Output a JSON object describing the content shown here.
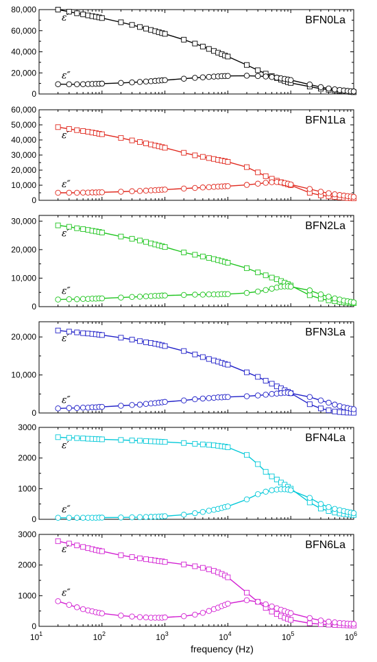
{
  "x_axis": {
    "label": "frequency (Hz)",
    "scale": "log",
    "range": [
      10,
      1000000
    ],
    "tick_values": [
      10,
      100,
      1000,
      10000,
      100000,
      1000000
    ],
    "tick_labels": [
      {
        "base": "10",
        "exp": "1"
      },
      {
        "base": "10",
        "exp": "2"
      },
      {
        "base": "10",
        "exp": "3"
      },
      {
        "base": "10",
        "exp": "4"
      },
      {
        "base": "10",
        "exp": "5"
      },
      {
        "base": "10",
        "exp": "6"
      }
    ]
  },
  "labels": {
    "eps_real": "ε′",
    "eps_imag": "ε″"
  },
  "chart_data": [
    {
      "type": "scatter",
      "title": "BFN0La",
      "color": "#000000",
      "ylim": [
        0,
        80000
      ],
      "yticks": [
        0,
        20000,
        40000,
        60000,
        80000
      ],
      "ytick_labels": [
        "0",
        "20,000",
        "40,000",
        "60,000",
        "80,000"
      ],
      "x": [
        20,
        30,
        40,
        50,
        60,
        70,
        80,
        90,
        100,
        200,
        300,
        400,
        500,
        600,
        700,
        800,
        900,
        1000,
        2000,
        3000,
        4000,
        5000,
        6000,
        7000,
        8000,
        9000,
        10000,
        20000,
        30000,
        40000,
        50000,
        60000,
        70000,
        80000,
        90000,
        100000,
        200000,
        300000,
        400000,
        500000,
        600000,
        700000,
        800000,
        900000,
        1000000
      ],
      "series": [
        {
          "name": "ε′",
          "marker": "square",
          "values": [
            80000,
            78000,
            76500,
            75500,
            74500,
            73800,
            73200,
            72600,
            72000,
            68000,
            65500,
            63500,
            62000,
            60700,
            59600,
            58600,
            57700,
            57000,
            51500,
            47800,
            45000,
            42700,
            40800,
            39200,
            37800,
            36500,
            35500,
            27500,
            22500,
            19300,
            17000,
            15100,
            13500,
            12200,
            11200,
            10500,
            7000,
            5000,
            4000,
            3400,
            2900,
            2500,
            2200,
            1900,
            1700
          ]
        },
        {
          "name": "ε″",
          "marker": "circle",
          "values": [
            9300,
            9200,
            9200,
            9300,
            9400,
            9500,
            9600,
            9700,
            9800,
            10500,
            11000,
            11400,
            11800,
            12100,
            12400,
            12700,
            12900,
            13100,
            14500,
            15300,
            15800,
            16200,
            16500,
            16700,
            16900,
            17000,
            17100,
            17300,
            17000,
            16600,
            16100,
            15500,
            14900,
            14300,
            13700,
            13200,
            9000,
            6500,
            5200,
            4400,
            3800,
            3300,
            2900,
            2600,
            2400
          ]
        }
      ]
    },
    {
      "type": "scatter",
      "title": "BFN1La",
      "color": "#e0261b",
      "ylim": [
        0,
        60000
      ],
      "yticks": [
        0,
        10000,
        20000,
        30000,
        40000,
        50000,
        60000
      ],
      "ytick_labels": [
        "0",
        "10,000",
        "20,000",
        "30,000",
        "40,000",
        "50,000",
        "60,000"
      ],
      "x": [
        20,
        30,
        40,
        50,
        60,
        70,
        80,
        90,
        100,
        200,
        300,
        400,
        500,
        600,
        700,
        800,
        900,
        1000,
        2000,
        3000,
        4000,
        5000,
        6000,
        7000,
        8000,
        9000,
        10000,
        20000,
        30000,
        40000,
        50000,
        60000,
        70000,
        80000,
        90000,
        100000,
        200000,
        300000,
        400000,
        500000,
        600000,
        700000,
        800000,
        900000,
        1000000
      ],
      "series": [
        {
          "name": "ε′",
          "marker": "square",
          "values": [
            48500,
            47300,
            46500,
            45900,
            45400,
            44900,
            44500,
            44100,
            43800,
            41300,
            39700,
            38600,
            37700,
            37000,
            36300,
            35800,
            35300,
            34800,
            31500,
            29800,
            28800,
            28000,
            27400,
            26800,
            26300,
            25900,
            25500,
            22000,
            18500,
            16000,
            14300,
            13000,
            12000,
            11200,
            10600,
            10000,
            5000,
            3300,
            2600,
            2200,
            1900,
            1700,
            1500,
            1400,
            1300
          ]
        },
        {
          "name": "ε″",
          "marker": "circle",
          "values": [
            5000,
            5000,
            5000,
            5100,
            5100,
            5200,
            5200,
            5300,
            5300,
            5700,
            6000,
            6200,
            6400,
            6600,
            6700,
            6900,
            7000,
            7100,
            7800,
            8200,
            8500,
            8700,
            8900,
            9100,
            9200,
            9300,
            9400,
            10200,
            11000,
            11600,
            12000,
            12100,
            11900,
            11500,
            11000,
            10500,
            7500,
            5700,
            4700,
            4000,
            3500,
            3100,
            2800,
            2500,
            2300
          ]
        }
      ]
    },
    {
      "type": "scatter",
      "title": "BFN2La",
      "color": "#1dc41d",
      "ylim": [
        0,
        32000
      ],
      "yticks": [
        0,
        10000,
        20000,
        30000
      ],
      "ytick_labels": [
        "0",
        "10,000",
        "20,000",
        "30,000"
      ],
      "x": [
        20,
        30,
        40,
        50,
        60,
        70,
        80,
        90,
        100,
        200,
        300,
        400,
        500,
        600,
        700,
        800,
        900,
        1000,
        2000,
        3000,
        4000,
        5000,
        6000,
        7000,
        8000,
        9000,
        10000,
        20000,
        30000,
        40000,
        50000,
        60000,
        70000,
        80000,
        90000,
        100000,
        200000,
        300000,
        400000,
        500000,
        600000,
        700000,
        800000,
        900000,
        1000000
      ],
      "series": [
        {
          "name": "ε′",
          "marker": "square",
          "values": [
            28500,
            28000,
            27500,
            27200,
            26900,
            26600,
            26400,
            26200,
            26000,
            24600,
            23800,
            23200,
            22700,
            22200,
            21800,
            21500,
            21200,
            20900,
            19000,
            18200,
            17600,
            17100,
            16700,
            16300,
            16000,
            15700,
            15400,
            13500,
            12000,
            11000,
            10200,
            9600,
            9000,
            8400,
            7900,
            7400,
            4000,
            2800,
            2200,
            1900,
            1700,
            1500,
            1400,
            1300,
            1200
          ]
        },
        {
          "name": "ε″",
          "marker": "circle",
          "values": [
            2500,
            2600,
            2600,
            2700,
            2700,
            2800,
            2800,
            2900,
            2900,
            3200,
            3400,
            3500,
            3600,
            3700,
            3800,
            3800,
            3900,
            3900,
            4100,
            4200,
            4200,
            4300,
            4300,
            4300,
            4400,
            4400,
            4400,
            4800,
            5300,
            5800,
            6300,
            6700,
            7000,
            7100,
            7100,
            7000,
            5700,
            4300,
            3500,
            2900,
            2500,
            2100,
            1900,
            1700,
            1500
          ]
        }
      ]
    },
    {
      "type": "scatter",
      "title": "BFN3La",
      "color": "#1f1fc8",
      "ylim": [
        0,
        24000
      ],
      "yticks": [
        0,
        10000,
        20000
      ],
      "ytick_labels": [
        "0",
        "10,000",
        "20,000"
      ],
      "x": [
        20,
        30,
        40,
        50,
        60,
        70,
        80,
        90,
        100,
        200,
        300,
        400,
        500,
        600,
        700,
        800,
        900,
        1000,
        2000,
        3000,
        4000,
        5000,
        6000,
        7000,
        8000,
        9000,
        10000,
        20000,
        30000,
        40000,
        50000,
        60000,
        70000,
        80000,
        90000,
        100000,
        200000,
        300000,
        400000,
        500000,
        600000,
        700000,
        800000,
        900000,
        1000000
      ],
      "series": [
        {
          "name": "ε′",
          "marker": "square",
          "values": [
            21700,
            21400,
            21200,
            21000,
            20900,
            20800,
            20700,
            20600,
            20500,
            19800,
            19300,
            18900,
            18600,
            18400,
            18200,
            18000,
            17800,
            17600,
            16300,
            15400,
            14700,
            14200,
            13800,
            13500,
            13200,
            12900,
            12700,
            10700,
            9500,
            8500,
            7700,
            7000,
            6500,
            6000,
            5600,
            5200,
            2300,
            1200,
            700,
            400,
            250,
            150,
            100,
            80,
            60
          ]
        },
        {
          "name": "ε″",
          "marker": "circle",
          "values": [
            1200,
            1300,
            1300,
            1400,
            1400,
            1500,
            1500,
            1600,
            1600,
            1900,
            2100,
            2200,
            2400,
            2500,
            2600,
            2700,
            2800,
            2900,
            3300,
            3600,
            3800,
            3900,
            4000,
            4100,
            4100,
            4200,
            4200,
            4400,
            4600,
            4800,
            5000,
            5100,
            5200,
            5300,
            5300,
            5200,
            4200,
            3300,
            2700,
            2200,
            1800,
            1500,
            1300,
            1100,
            1000
          ]
        }
      ]
    },
    {
      "type": "scatter",
      "title": "BFN4La",
      "color": "#00c8d8",
      "ylim": [
        0,
        3000
      ],
      "yticks": [
        0,
        1000,
        2000,
        3000
      ],
      "ytick_labels": [
        "0",
        "1000",
        "2000",
        "3000"
      ],
      "x": [
        20,
        30,
        40,
        50,
        60,
        70,
        80,
        90,
        100,
        200,
        300,
        400,
        500,
        600,
        700,
        800,
        900,
        1000,
        2000,
        3000,
        4000,
        5000,
        6000,
        7000,
        8000,
        9000,
        10000,
        20000,
        30000,
        40000,
        50000,
        60000,
        70000,
        80000,
        90000,
        100000,
        200000,
        300000,
        400000,
        500000,
        600000,
        700000,
        800000,
        900000,
        1000000
      ],
      "series": [
        {
          "name": "ε′",
          "marker": "square",
          "values": [
            2680,
            2660,
            2650,
            2640,
            2630,
            2625,
            2620,
            2615,
            2610,
            2590,
            2575,
            2565,
            2555,
            2545,
            2540,
            2535,
            2530,
            2525,
            2490,
            2465,
            2445,
            2430,
            2415,
            2400,
            2385,
            2370,
            2350,
            2100,
            1800,
            1550,
            1400,
            1300,
            1200,
            1130,
            1060,
            1000,
            550,
            350,
            270,
            220,
            190,
            170,
            160,
            150,
            140
          ]
        },
        {
          "name": "ε″",
          "marker": "circle",
          "values": [
            50,
            50,
            50,
            50,
            50,
            50,
            50,
            55,
            55,
            60,
            65,
            70,
            75,
            80,
            85,
            90,
            95,
            100,
            150,
            200,
            240,
            280,
            310,
            340,
            370,
            400,
            420,
            650,
            820,
            900,
            950,
            970,
            980,
            980,
            970,
            950,
            700,
            500,
            400,
            340,
            300,
            270,
            240,
            220,
            200
          ]
        }
      ]
    },
    {
      "type": "scatter",
      "title": "BFN6La",
      "color": "#d21fd2",
      "ylim": [
        0,
        3000
      ],
      "yticks": [
        0,
        1000,
        2000,
        3000
      ],
      "ytick_labels": [
        "0",
        "1000",
        "2000",
        "3000"
      ],
      "x": [
        20,
        30,
        40,
        50,
        60,
        70,
        80,
        90,
        100,
        200,
        300,
        400,
        500,
        600,
        700,
        800,
        900,
        1000,
        2000,
        3000,
        4000,
        5000,
        6000,
        7000,
        8000,
        9000,
        10000,
        20000,
        30000,
        40000,
        50000,
        60000,
        70000,
        80000,
        90000,
        100000,
        200000,
        300000,
        400000,
        500000,
        600000,
        700000,
        800000,
        900000,
        1000000
      ],
      "series": [
        {
          "name": "ε′",
          "marker": "square",
          "values": [
            2780,
            2700,
            2640,
            2590,
            2550,
            2520,
            2490,
            2470,
            2450,
            2320,
            2260,
            2220,
            2190,
            2170,
            2150,
            2130,
            2120,
            2100,
            2020,
            1960,
            1910,
            1860,
            1810,
            1760,
            1710,
            1660,
            1600,
            1100,
            800,
            600,
            480,
            400,
            330,
            280,
            240,
            210,
            100,
            70,
            55,
            45,
            40,
            35,
            30,
            28,
            25
          ]
        },
        {
          "name": "ε″",
          "marker": "circle",
          "values": [
            820,
            700,
            620,
            560,
            520,
            490,
            460,
            440,
            420,
            350,
            320,
            300,
            290,
            280,
            280,
            280,
            280,
            290,
            330,
            380,
            440,
            500,
            560,
            610,
            660,
            700,
            740,
            850,
            800,
            720,
            650,
            590,
            540,
            500,
            460,
            430,
            270,
            190,
            150,
            130,
            110,
            100,
            90,
            85,
            80
          ]
        }
      ]
    }
  ]
}
